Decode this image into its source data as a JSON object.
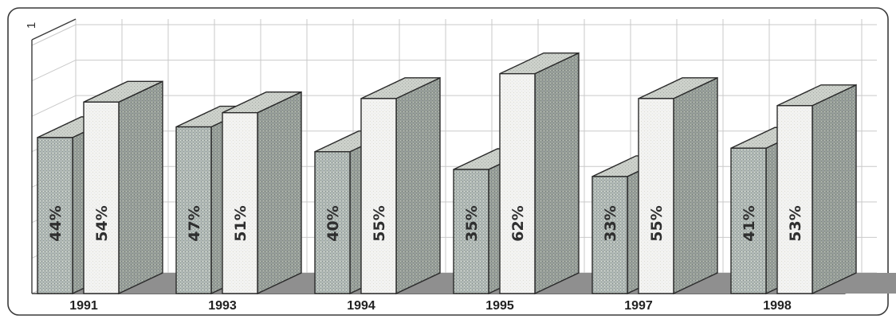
{
  "chart_data": {
    "type": "bar",
    "title": "",
    "xlabel": "",
    "ylabel": "",
    "categories": [
      "1991",
      "1993",
      "1994",
      "1995",
      "1997",
      "1998"
    ],
    "series": [
      {
        "values": [
          44,
          47,
          40,
          35,
          33,
          41
        ],
        "labels": [
          "44%",
          "47%",
          "40%",
          "35%",
          "33%",
          "41%"
        ]
      },
      {
        "values": [
          54,
          51,
          55,
          62,
          55,
          53
        ],
        "labels": [
          "54%",
          "51%",
          "55%",
          "62%",
          "55%",
          "53%"
        ]
      }
    ],
    "ylim": [
      0,
      70
    ],
    "y_tick_label": "1",
    "grid": true,
    "three_d": true,
    "colors": {
      "series_1_front": "#b7bfbb",
      "series_1_side": "#9aa29c",
      "series_2_front": "#f1f1f1",
      "series_2_side": "#a7aba6",
      "top": "#cfd3cd"
    }
  }
}
